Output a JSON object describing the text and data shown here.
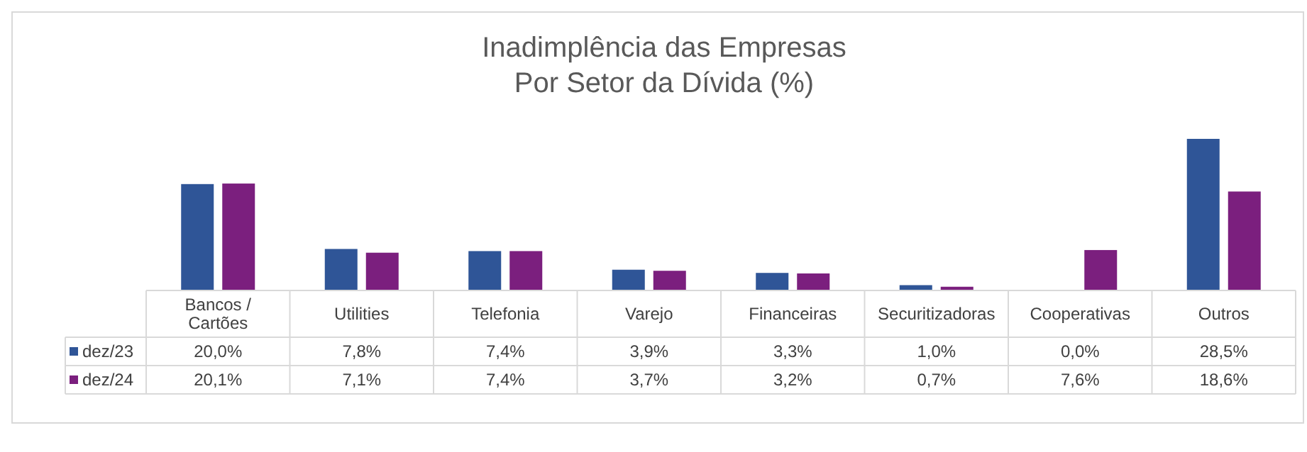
{
  "chart_data": {
    "type": "bar",
    "title": "Inadimplência das Empresas\nPor Setor da Dívida (%)",
    "categories": [
      "Bancos / Cartões",
      "Utilities",
      "Telefonia",
      "Varejo",
      "Financeiras",
      "Securitizadoras",
      "Cooperativas",
      "Outros"
    ],
    "series": [
      {
        "name": "dez/23",
        "color": "#2f5597",
        "values": [
          20.0,
          7.8,
          7.4,
          3.9,
          3.3,
          1.0,
          0.0,
          28.5
        ],
        "value_labels": [
          "20,0%",
          "7,8%",
          "7,4%",
          "3,9%",
          "3,3%",
          "1,0%",
          "0,0%",
          "28,5%"
        ]
      },
      {
        "name": "dez/24",
        "color": "#7b1f7e",
        "values": [
          20.1,
          7.1,
          7.4,
          3.7,
          3.2,
          0.7,
          7.6,
          18.6
        ],
        "value_labels": [
          "20,1%",
          "7,1%",
          "7,4%",
          "3,7%",
          "3,2%",
          "0,7%",
          "7,6%",
          "18,6%"
        ]
      }
    ],
    "legend": "left"
  }
}
